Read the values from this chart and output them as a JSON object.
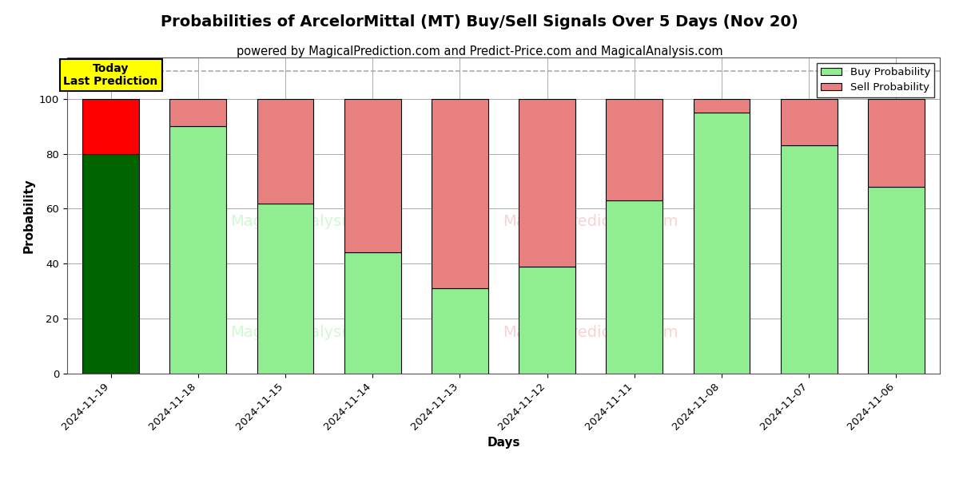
{
  "title": "Probabilities of ArcelorMittal (MT) Buy/Sell Signals Over 5 Days (Nov 20)",
  "subtitle": "powered by MagicalPrediction.com and Predict-Price.com and MagicalAnalysis.com",
  "xlabel": "Days",
  "ylabel": "Probability",
  "categories": [
    "2024-11-19",
    "2024-11-18",
    "2024-11-15",
    "2024-11-14",
    "2024-11-13",
    "2024-11-12",
    "2024-11-11",
    "2024-11-08",
    "2024-11-07",
    "2024-11-06"
  ],
  "buy_values": [
    80,
    90,
    62,
    44,
    31,
    39,
    63,
    95,
    83,
    68
  ],
  "sell_values": [
    20,
    10,
    38,
    56,
    69,
    61,
    37,
    5,
    17,
    32
  ],
  "today_buy_color": "#006400",
  "today_sell_color": "#FF0000",
  "other_buy_color": "#90EE90",
  "other_sell_color": "#E88080",
  "bar_edge_color": "#000000",
  "background_color": "#ffffff",
  "grid_color": "#aaaaaa",
  "ylim": [
    0,
    115
  ],
  "yticks": [
    0,
    20,
    40,
    60,
    80,
    100
  ],
  "dashed_line_y": 110,
  "legend_buy_label": "Buy Probability",
  "legend_sell_label": "Sell Probability",
  "today_label_text": "Today\nLast Prediction",
  "title_fontsize": 14,
  "subtitle_fontsize": 10.5,
  "axis_label_fontsize": 11,
  "tick_fontsize": 9.5
}
